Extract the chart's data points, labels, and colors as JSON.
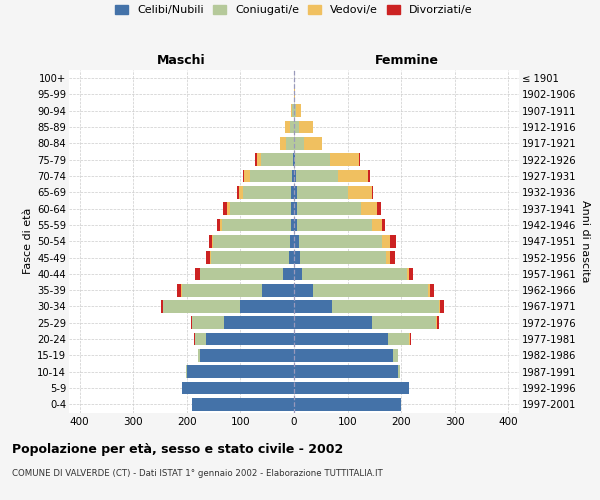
{
  "age_groups": [
    "0-4",
    "5-9",
    "10-14",
    "15-19",
    "20-24",
    "25-29",
    "30-34",
    "35-39",
    "40-44",
    "45-49",
    "50-54",
    "55-59",
    "60-64",
    "65-69",
    "70-74",
    "75-79",
    "80-84",
    "85-89",
    "90-94",
    "95-99",
    "100+"
  ],
  "birth_years": [
    "1997-2001",
    "1992-1996",
    "1987-1991",
    "1982-1986",
    "1977-1981",
    "1972-1976",
    "1967-1971",
    "1962-1966",
    "1957-1961",
    "1952-1956",
    "1947-1951",
    "1942-1946",
    "1937-1941",
    "1932-1936",
    "1927-1931",
    "1922-1926",
    "1917-1921",
    "1912-1916",
    "1907-1911",
    "1902-1906",
    "≤ 1901"
  ],
  "male": {
    "celibi": [
      190,
      210,
      200,
      175,
      165,
      130,
      100,
      60,
      20,
      10,
      7,
      5,
      5,
      5,
      3,
      2,
      0,
      0,
      0,
      0,
      0
    ],
    "coniugati": [
      0,
      0,
      2,
      5,
      20,
      60,
      145,
      150,
      155,
      145,
      145,
      130,
      115,
      90,
      80,
      60,
      15,
      8,
      3,
      0,
      0
    ],
    "vedovi": [
      0,
      0,
      0,
      0,
      0,
      0,
      0,
      1,
      1,
      2,
      2,
      3,
      5,
      8,
      10,
      8,
      12,
      8,
      2,
      0,
      0
    ],
    "divorziati": [
      0,
      0,
      0,
      0,
      2,
      2,
      4,
      8,
      8,
      8,
      4,
      5,
      8,
      4,
      2,
      2,
      0,
      0,
      0,
      0,
      0
    ]
  },
  "female": {
    "nubili": [
      200,
      215,
      195,
      185,
      175,
      145,
      70,
      35,
      15,
      12,
      10,
      5,
      5,
      5,
      3,
      2,
      0,
      0,
      0,
      0,
      0
    ],
    "coniugate": [
      0,
      0,
      2,
      10,
      40,
      120,
      200,
      215,
      195,
      160,
      155,
      140,
      120,
      95,
      80,
      65,
      18,
      10,
      3,
      0,
      0
    ],
    "vedove": [
      0,
      0,
      0,
      0,
      1,
      2,
      2,
      3,
      5,
      8,
      15,
      20,
      30,
      45,
      55,
      55,
      35,
      25,
      10,
      2,
      0
    ],
    "divorziate": [
      0,
      0,
      0,
      0,
      2,
      3,
      8,
      8,
      8,
      8,
      10,
      5,
      8,
      3,
      3,
      2,
      0,
      0,
      0,
      0,
      0
    ]
  },
  "colors": {
    "celibi": "#4472a8",
    "coniugati": "#b5c99a",
    "vedovi": "#f0c060",
    "divorziati": "#cc2222"
  },
  "xlim": 420,
  "title": "Popolazione per età, sesso e stato civile - 2002",
  "subtitle": "COMUNE DI VALVERDE (CT) - Dati ISTAT 1° gennaio 2002 - Elaborazione TUTTITALIA.IT",
  "ylabel_left": "Fasce di età",
  "ylabel_right": "Anni di nascita",
  "xlabel_maschi": "Maschi",
  "xlabel_femmine": "Femmine",
  "legend_labels": [
    "Celibi/Nubili",
    "Coniugati/e",
    "Vedovi/e",
    "Divorziati/e"
  ],
  "bg_color": "#f5f5f5",
  "plot_bg_color": "#ffffff",
  "grid_color": "#cccccc"
}
